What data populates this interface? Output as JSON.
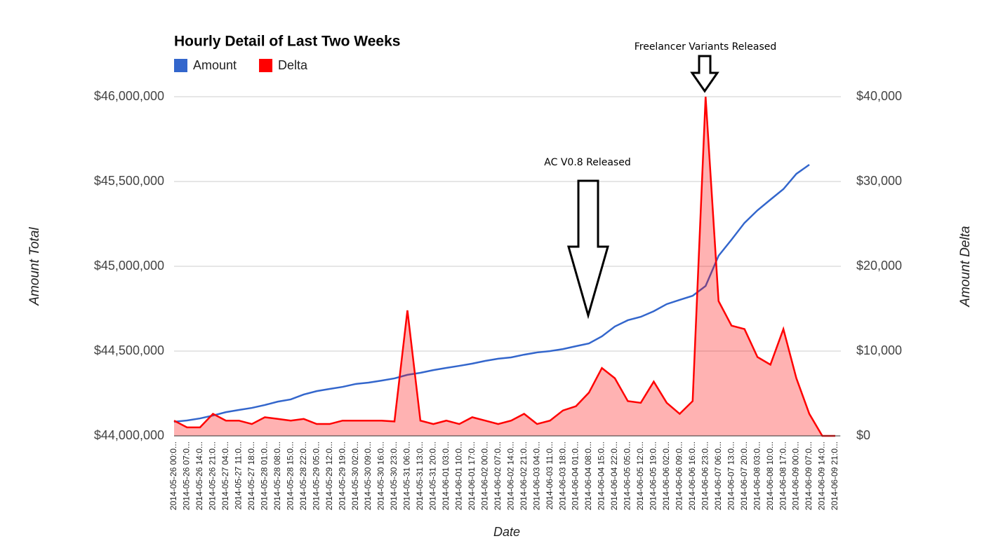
{
  "chart_data": {
    "type": "line",
    "title": "Hourly Detail of Last Two Weeks",
    "x_label": "Date",
    "y_label": "Amount Total",
    "y2_label": "Amount Delta",
    "annotations": [
      "AC V0.8 Released",
      "Freelancer Variants Released"
    ],
    "categories": [
      "2014-05-26 00:0...",
      "2014-05-26 07:0...",
      "2014-05-26 14:0...",
      "2014-05-26 21:0...",
      "2014-05-27 04:0...",
      "2014-05-27 11:0...",
      "2014-05-27 18:0...",
      "2014-05-28 01:0...",
      "2014-05-28 08:0...",
      "2014-05-28 15:0...",
      "2014-05-28 22:0...",
      "2014-05-29 05:0...",
      "2014-05-29 12:0...",
      "2014-05-29 19:0...",
      "2014-05-30 02:0...",
      "2014-05-30 09:0...",
      "2014-05-30 16:0...",
      "2014-05-30 23:0...",
      "2014-05-31 06:0...",
      "2014-05-31 13:0...",
      "2014-05-31 20:0...",
      "2014-06-01 03:0...",
      "2014-06-01 10:0...",
      "2014-06-01 17:0...",
      "2014-06-02 00:0...",
      "2014-06-02 07:0...",
      "2014-06-02 14:0...",
      "2014-06-02 21:0...",
      "2014-06-03 04:0...",
      "2014-06-03 11:0...",
      "2014-06-03 18:0...",
      "2014-06-04 01:0...",
      "2014-06-04 08:0...",
      "2014-06-04 15:0...",
      "2014-06-04 22:0...",
      "2014-06-05 05:0...",
      "2014-06-05 12:0...",
      "2014-06-05 19:0...",
      "2014-06-06 02:0...",
      "2014-06-06 09:0...",
      "2014-06-06 16:0...",
      "2014-06-06 23:0...",
      "2014-06-07 06:0...",
      "2014-06-07 13:0...",
      "2014-06-07 20:0...",
      "2014-06-08 03:0...",
      "2014-06-08 10:0...",
      "2014-06-08 17:0...",
      "2014-06-09 00:0...",
      "2014-06-09 07:0...",
      "2014-06-09 14:0...",
      "2014-06-09 21:0..."
    ],
    "series": [
      {
        "name": "Amount",
        "color": "#3366cc",
        "type": "line",
        "axis": "y",
        "values": [
          44083000,
          44091000,
          44103000,
          44120000,
          44140000,
          44153000,
          44165000,
          44182000,
          44202000,
          44215000,
          44244000,
          44264000,
          44277000,
          44289000,
          44306000,
          44314000,
          44326000,
          44339000,
          44360000,
          44372000,
          44388000,
          44401000,
          44413000,
          44426000,
          44442000,
          44455000,
          44463000,
          44479000,
          44492000,
          44500000,
          44512000,
          44529000,
          44545000,
          44587000,
          44645000,
          44682000,
          44702000,
          44735000,
          44777000,
          44802000,
          44826000,
          44884000,
          45062000,
          45157000,
          45256000,
          45330000,
          45393000,
          45455000,
          45545000,
          45599000,
          null,
          null
        ]
      },
      {
        "name": "Delta",
        "color": "#ff0000",
        "type": "area",
        "axis": "y2",
        "values": [
          1800,
          1000,
          1000,
          2600,
          1800,
          1800,
          1400,
          2200,
          2000,
          1800,
          2000,
          1400,
          1400,
          1800,
          1800,
          1800,
          1800,
          1700,
          14800,
          1800,
          1400,
          1800,
          1400,
          2200,
          1800,
          1400,
          1800,
          2600,
          1400,
          1800,
          3000,
          3500,
          5100,
          8000,
          6800,
          4100,
          3900,
          6400,
          3900,
          2600,
          4100,
          40000,
          15900,
          13000,
          12600,
          9300,
          8400,
          12600,
          6800,
          2600,
          0,
          0
        ]
      }
    ],
    "ylim": [
      44000000,
      46000000
    ],
    "yticks": [
      {
        "value": 44000000,
        "label": "$44,000,000"
      },
      {
        "value": 44500000,
        "label": "$44,500,000"
      },
      {
        "value": 45000000,
        "label": "$45,000,000"
      },
      {
        "value": 45500000,
        "label": "$45,500,000"
      },
      {
        "value": 46000000,
        "label": "$46,000,000"
      }
    ],
    "y2lim": [
      0,
      40000
    ],
    "y2ticks": [
      {
        "value": 0,
        "label": "$0"
      },
      {
        "value": 10000,
        "label": "$10,000"
      },
      {
        "value": 20000,
        "label": "$20,000"
      },
      {
        "value": 30000,
        "label": "$30,000"
      },
      {
        "value": 40000,
        "label": "$40,000"
      }
    ],
    "grid": true,
    "legend": "top-left"
  }
}
